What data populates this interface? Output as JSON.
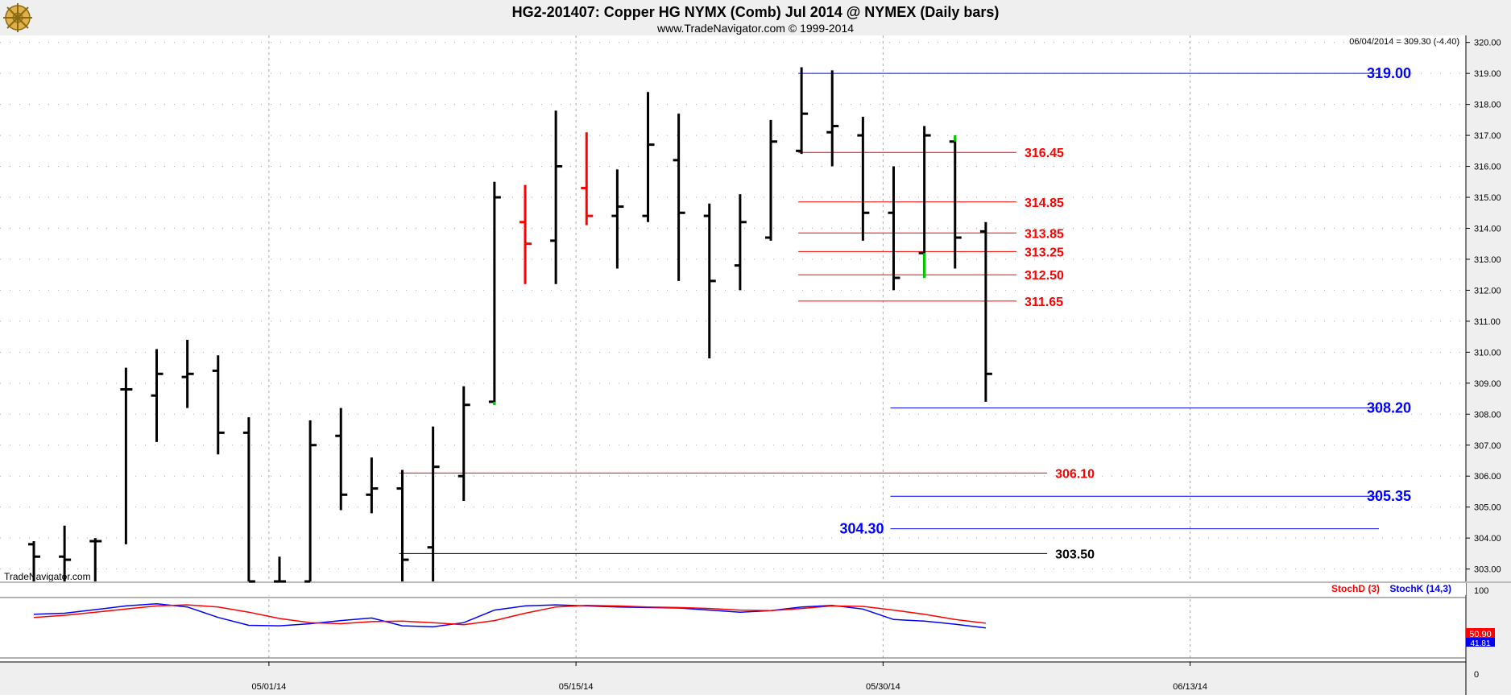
{
  "header": {
    "title": "HG2-201407:  Copper HG NYMX (Comb) Jul 2014 @ NYMEX  (Daily bars)",
    "subtitle": "www.TradeNavigator.com © 1999-2014",
    "readout": "06/04/2014 = 309.30 (-4.40)",
    "watermark": "TradeNavigator.com",
    "logo_icon": "ship-wheel-icon"
  },
  "colors": {
    "bar": "#000000",
    "bar_red": "#ff0000",
    "bar_green": "#00cc00",
    "level_red": "#ff0000",
    "level_blue": "#0000ff",
    "level_black": "#000000",
    "header_bg": "#efefef",
    "axis_bg": "#efefef",
    "grid": "#aaaaaa"
  },
  "chart_data": {
    "type": "ohlc",
    "title": "HG2-201407:  Copper HG NYMX (Comb) Jul 2014 @ NYMEX  (Daily bars)",
    "ylim": [
      302.6,
      320.2
    ],
    "y_ticks": [
      "303.00",
      "304.00",
      "305.00",
      "306.00",
      "307.00",
      "308.00",
      "309.00",
      "310.00",
      "311.00",
      "312.00",
      "313.00",
      "314.00",
      "315.00",
      "316.00",
      "317.00",
      "318.00",
      "319.00",
      "320.00"
    ],
    "x_tick_labels": [
      {
        "label": "05/01/14",
        "bar": 7
      },
      {
        "label": "05/15/14",
        "bar": 17
      },
      {
        "label": "05/30/14",
        "bar": 27
      },
      {
        "label": "06/13/14",
        "bar": 37
      }
    ],
    "bars": [
      {
        "o": 303.8,
        "h": 303.9,
        "l": 302.6,
        "c": 303.4,
        "color": "black"
      },
      {
        "o": 303.4,
        "h": 304.4,
        "l": 302.6,
        "c": 303.3,
        "color": "black"
      },
      {
        "o": 303.9,
        "h": 304.0,
        "l": 302.6,
        "c": 303.9,
        "color": "black"
      },
      {
        "o": 308.8,
        "h": 309.5,
        "l": 303.8,
        "c": 308.8,
        "color": "black"
      },
      {
        "o": 308.6,
        "h": 310.1,
        "l": 307.1,
        "c": 309.3,
        "color": "black"
      },
      {
        "o": 309.2,
        "h": 310.4,
        "l": 308.2,
        "c": 309.3,
        "color": "black"
      },
      {
        "o": 309.4,
        "h": 309.9,
        "l": 306.7,
        "c": 307.4,
        "color": "black"
      },
      {
        "o": 307.4,
        "h": 307.9,
        "l": 302.6,
        "c": 302.6,
        "color": "black"
      },
      {
        "o": 302.6,
        "h": 303.4,
        "l": 302.6,
        "c": 302.6,
        "color": "black"
      },
      {
        "o": 302.6,
        "h": 307.8,
        "l": 302.6,
        "c": 307.0,
        "color": "black"
      },
      {
        "o": 307.3,
        "h": 308.2,
        "l": 304.9,
        "c": 305.4,
        "color": "black"
      },
      {
        "o": 305.4,
        "h": 306.6,
        "l": 304.8,
        "c": 305.6,
        "color": "black"
      },
      {
        "o": 305.6,
        "h": 306.2,
        "l": 302.6,
        "c": 303.3,
        "color": "black"
      },
      {
        "o": 303.7,
        "h": 307.6,
        "l": 302.6,
        "c": 306.3,
        "color": "black"
      },
      {
        "o": 306.0,
        "h": 308.9,
        "l": 305.2,
        "c": 308.3,
        "color": "black"
      },
      {
        "o": 308.4,
        "h": 315.5,
        "l": 308.3,
        "c": 315.0,
        "color": "black"
      },
      {
        "o": 314.2,
        "h": 315.4,
        "l": 312.2,
        "c": 313.5,
        "color": "red"
      },
      {
        "o": 313.6,
        "h": 317.8,
        "l": 312.2,
        "c": 316.0,
        "color": "black"
      },
      {
        "o": 315.3,
        "h": 317.1,
        "l": 314.1,
        "c": 314.4,
        "color": "red"
      },
      {
        "o": 314.4,
        "h": 315.9,
        "l": 312.7,
        "c": 314.7,
        "color": "black"
      },
      {
        "o": 314.4,
        "h": 318.4,
        "l": 314.2,
        "c": 316.7,
        "color": "black"
      },
      {
        "o": 316.2,
        "h": 317.7,
        "l": 312.3,
        "c": 314.5,
        "color": "black"
      },
      {
        "o": 314.4,
        "h": 314.8,
        "l": 309.8,
        "c": 312.3,
        "color": "black"
      },
      {
        "o": 312.8,
        "h": 315.1,
        "l": 312.0,
        "c": 314.2,
        "color": "black"
      },
      {
        "o": 313.7,
        "h": 317.5,
        "l": 313.6,
        "c": 316.8,
        "color": "black"
      },
      {
        "o": 316.5,
        "h": 319.2,
        "l": 316.4,
        "c": 317.7,
        "color": "black"
      },
      {
        "o": 317.1,
        "h": 319.1,
        "l": 316.0,
        "c": 317.3,
        "color": "black"
      },
      {
        "o": 317.0,
        "h": 317.6,
        "l": 313.6,
        "c": 314.5,
        "color": "black"
      },
      {
        "o": 314.5,
        "h": 316.0,
        "l": 312.0,
        "c": 312.4,
        "color": "black"
      },
      {
        "o": 313.2,
        "h": 317.3,
        "l": 312.4,
        "c": 317.0,
        "color": "black"
      },
      {
        "o": 316.8,
        "h": 317.0,
        "l": 312.7,
        "c": 313.7,
        "color": "black"
      },
      {
        "o": 313.9,
        "h": 314.2,
        "l": 308.4,
        "c": 309.3,
        "color": "black"
      }
    ],
    "green_marks": [
      {
        "bar": 15,
        "from": 308.3,
        "to": 308.4
      },
      {
        "bar": 29,
        "from": 312.4,
        "to": 313.2
      },
      {
        "bar": 30,
        "from": 316.8,
        "to": 317.0
      }
    ],
    "levels": [
      {
        "value": 319.0,
        "label": "319.00",
        "color": "blue",
        "from_bar": 25,
        "to_bar": 45,
        "label_side": "right"
      },
      {
        "value": 316.45,
        "label": "316.45",
        "color": "red",
        "from_bar": 25,
        "to_bar": 32,
        "label_side": "right"
      },
      {
        "value": 314.85,
        "label": "314.85",
        "color": "red",
        "from_bar": 25,
        "to_bar": 32,
        "label_side": "right"
      },
      {
        "value": 313.85,
        "label": "313.85",
        "color": "red",
        "from_bar": 25,
        "to_bar": 32,
        "label_side": "right"
      },
      {
        "value": 313.25,
        "label": "313.25",
        "color": "red",
        "from_bar": 25,
        "to_bar": 32,
        "label_side": "right"
      },
      {
        "value": 312.5,
        "label": "312.50",
        "color": "red",
        "from_bar": 25,
        "to_bar": 32,
        "label_side": "right"
      },
      {
        "value": 311.65,
        "label": "311.65",
        "color": "red",
        "from_bar": 25,
        "to_bar": 32,
        "label_side": "right"
      },
      {
        "value": 308.2,
        "label": "308.20",
        "color": "blue",
        "from_bar": 28,
        "to_bar": 45,
        "label_side": "right"
      },
      {
        "value": 306.1,
        "label": "306.10",
        "color": "red",
        "from_bar": 12,
        "to_bar": 33,
        "label_side": "right"
      },
      {
        "value": 305.35,
        "label": "305.35",
        "color": "blue",
        "from_bar": 28,
        "to_bar": 45,
        "label_side": "right"
      },
      {
        "value": 304.3,
        "label": "304.30",
        "color": "blue",
        "from_bar": 28,
        "to_bar": 45,
        "label_side": "left"
      },
      {
        "value": 303.5,
        "label": "303.50",
        "color": "black",
        "from_bar": 12,
        "to_bar": 33,
        "label_side": "right"
      }
    ],
    "stochastic": {
      "ylim": [
        0,
        100
      ],
      "y_ticks": [
        "0",
        "100"
      ],
      "legend_d": "StochD (3)",
      "legend_k": "StochK (14,3)",
      "value_d": "50.90",
      "value_k": "41.81",
      "k_values": [
        68,
        70,
        77,
        84,
        88,
        82,
        62,
        47,
        46,
        50,
        56,
        61,
        46,
        44,
        52,
        76,
        84,
        86,
        84,
        82,
        81,
        80,
        76,
        72,
        75,
        82,
        85,
        78,
        58,
        55,
        49,
        41.81
      ],
      "d_values": [
        62,
        66,
        72,
        78,
        84,
        86,
        82,
        72,
        60,
        52,
        50,
        54,
        55,
        52,
        48,
        56,
        70,
        82,
        85,
        84,
        82,
        81,
        79,
        76,
        75,
        79,
        84,
        83,
        76,
        68,
        58,
        50.9
      ]
    }
  }
}
